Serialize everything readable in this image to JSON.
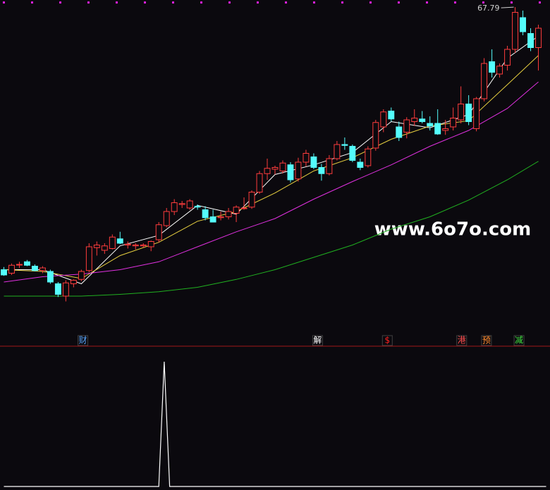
{
  "chart_data": [
    {
      "type": "candlestick",
      "xlim": [
        -0.5,
        70.5
      ],
      "ylim": [
        31.0,
        68.6
      ],
      "up_color": "#ff3c3c",
      "down_color": "#54fcfc",
      "open": [
        38.0,
        37.6,
        38.6,
        38.9,
        38.4,
        37.9,
        37.8,
        36.4,
        35.0,
        36.4,
        36.9,
        37.9,
        40.5,
        40.2,
        40.4,
        41.5,
        40.8,
        40.7,
        40.7,
        40.6,
        41.4,
        43.0,
        44.6,
        45.4,
        45.0,
        45.2,
        44.8,
        44.0,
        43.9,
        44.0,
        44.4,
        45.0,
        45.1,
        46.8,
        48.9,
        49.4,
        49.2,
        49.9,
        48.3,
        50.2,
        50.8,
        49.6,
        48.9,
        50.6,
        52.2,
        52.0,
        50.2,
        49.8,
        51.8,
        54.2,
        56.0,
        54.2,
        53.6,
        54.8,
        55.1,
        54.6,
        54.6,
        53.8,
        54.2,
        55.0,
        56.8,
        54.0,
        57.4,
        61.6,
        60.2,
        61.2,
        63.0,
        66.6,
        64.8,
        63.2
      ],
      "high": [
        38.3,
        38.7,
        38.9,
        39.1,
        38.6,
        38.4,
        38.0,
        36.6,
        36.8,
        36.9,
        38.0,
        41.0,
        41.2,
        41.0,
        42.0,
        42.3,
        41.2,
        41.0,
        41.0,
        41.3,
        43.4,
        45.0,
        46.0,
        45.8,
        46.0,
        45.4,
        45.2,
        44.8,
        44.6,
        45.0,
        45.3,
        46.2,
        47.0,
        49.2,
        50.6,
        49.8,
        50.4,
        50.2,
        50.7,
        51.6,
        51.2,
        50.0,
        51.0,
        52.6,
        53.0,
        52.2,
        50.6,
        52.0,
        55.0,
        56.2,
        56.4,
        54.8,
        55.3,
        56.2,
        56.0,
        55.4,
        56.2,
        55.0,
        56.4,
        58.8,
        57.8,
        57.6,
        62.0,
        63.0,
        61.4,
        63.4,
        67.79,
        67.4,
        65.4,
        65.8
      ],
      "low": [
        37.3,
        37.4,
        38.2,
        38.4,
        37.8,
        37.6,
        36.4,
        34.9,
        34.4,
        36.0,
        36.7,
        37.7,
        39.6,
        39.8,
        40.3,
        40.9,
        40.4,
        40.3,
        40.5,
        40.1,
        41.1,
        42.8,
        44.2,
        45.0,
        44.8,
        44.8,
        43.6,
        43.4,
        43.6,
        43.7,
        43.4,
        44.8,
        44.9,
        46.6,
        48.2,
        48.8,
        48.9,
        47.9,
        48.0,
        49.7,
        49.4,
        48.1,
        48.7,
        50.4,
        51.6,
        50.2,
        49.3,
        49.6,
        51.5,
        53.6,
        54.8,
        52.6,
        52.9,
        54.3,
        54.6,
        53.8,
        53.3,
        53.3,
        53.8,
        54.6,
        54.4,
        53.7,
        57.1,
        59.8,
        59.8,
        60.6,
        62.6,
        64.6,
        62.8,
        60.6
      ],
      "close": [
        37.4,
        38.5,
        38.6,
        38.5,
        37.9,
        38.2,
        36.6,
        35.2,
        36.5,
        36.8,
        37.8,
        40.6,
        40.8,
        40.7,
        41.7,
        41.0,
        40.9,
        40.8,
        40.8,
        41.2,
        43.1,
        44.6,
        45.6,
        45.5,
        45.8,
        45.1,
        43.9,
        43.4,
        44.0,
        44.6,
        45.1,
        45.0,
        46.8,
        48.9,
        49.5,
        49.6,
        50.1,
        48.2,
        50.2,
        51.2,
        49.6,
        48.9,
        50.6,
        52.2,
        52.1,
        50.4,
        49.6,
        51.7,
        54.7,
        55.9,
        55.1,
        53.0,
        55.0,
        55.2,
        54.8,
        54.3,
        53.4,
        54.0,
        55.2,
        56.8,
        54.8,
        57.4,
        61.4,
        60.4,
        61.1,
        63.0,
        67.2,
        65.0,
        63.2,
        65.4
      ],
      "series": [
        {
          "color": "#ffffff",
          "x": [
            0,
            5,
            10,
            15,
            20,
            25,
            30,
            35,
            40,
            45,
            50,
            55,
            60,
            65,
            69
          ],
          "values": [
            38.0,
            38.0,
            36.4,
            40.7,
            41.9,
            45.3,
            44.3,
            48.8,
            49.9,
            51.3,
            54.8,
            54.1,
            55.6,
            62.0,
            64.5
          ]
        },
        {
          "color": "#e8d040",
          "x": [
            0,
            5,
            10,
            15,
            20,
            25,
            30,
            35,
            40,
            45,
            50,
            55,
            60,
            65,
            69
          ],
          "values": [
            38.0,
            37.8,
            37.0,
            39.6,
            41.1,
            43.5,
            44.6,
            46.7,
            49.2,
            50.7,
            52.8,
            54.3,
            54.9,
            59.0,
            62.3
          ]
        },
        {
          "color": "#e030e0",
          "x": [
            0,
            5,
            10,
            15,
            20,
            25,
            30,
            35,
            40,
            45,
            50,
            55,
            60,
            65,
            69
          ],
          "values": [
            36.6,
            37.2,
            37.5,
            38.0,
            38.9,
            40.6,
            42.3,
            43.8,
            46.0,
            48.0,
            49.9,
            52.0,
            53.8,
            56.3,
            59.3
          ]
        },
        {
          "color": "#20b020",
          "x": [
            0,
            5,
            10,
            15,
            20,
            25,
            30,
            35,
            40,
            45,
            50,
            55,
            60,
            65,
            69
          ],
          "values": [
            35.0,
            35.0,
            35.0,
            35.2,
            35.5,
            36.0,
            36.9,
            38.0,
            39.4,
            40.8,
            42.6,
            44.0,
            45.9,
            48.2,
            50.3
          ]
        }
      ],
      "high_label": {
        "x": 66,
        "value": 67.79
      },
      "signals": [
        {
          "text": "财",
          "x": 10.2,
          "color": "#5aa8ff"
        },
        {
          "text": "解",
          "x": 40.5,
          "color": "#ffffff"
        },
        {
          "text": "$",
          "x": 49.5,
          "color": "#ff2020"
        },
        {
          "text": "港",
          "x": 59.1,
          "color": "#ff5050"
        },
        {
          "text": "预",
          "x": 62.3,
          "color": "#ff8c30"
        },
        {
          "text": "减",
          "x": 66.5,
          "color": "#40e040"
        }
      ],
      "watermark": "www.6o7o.com"
    },
    {
      "type": "line",
      "xlim": [
        -0.5,
        70.5
      ],
      "ylim": [
        0,
        1
      ],
      "color": "#ffffff",
      "x": [
        0,
        20,
        20.7,
        21.4,
        70
      ],
      "values": [
        0,
        0,
        1,
        0,
        0
      ]
    }
  ]
}
